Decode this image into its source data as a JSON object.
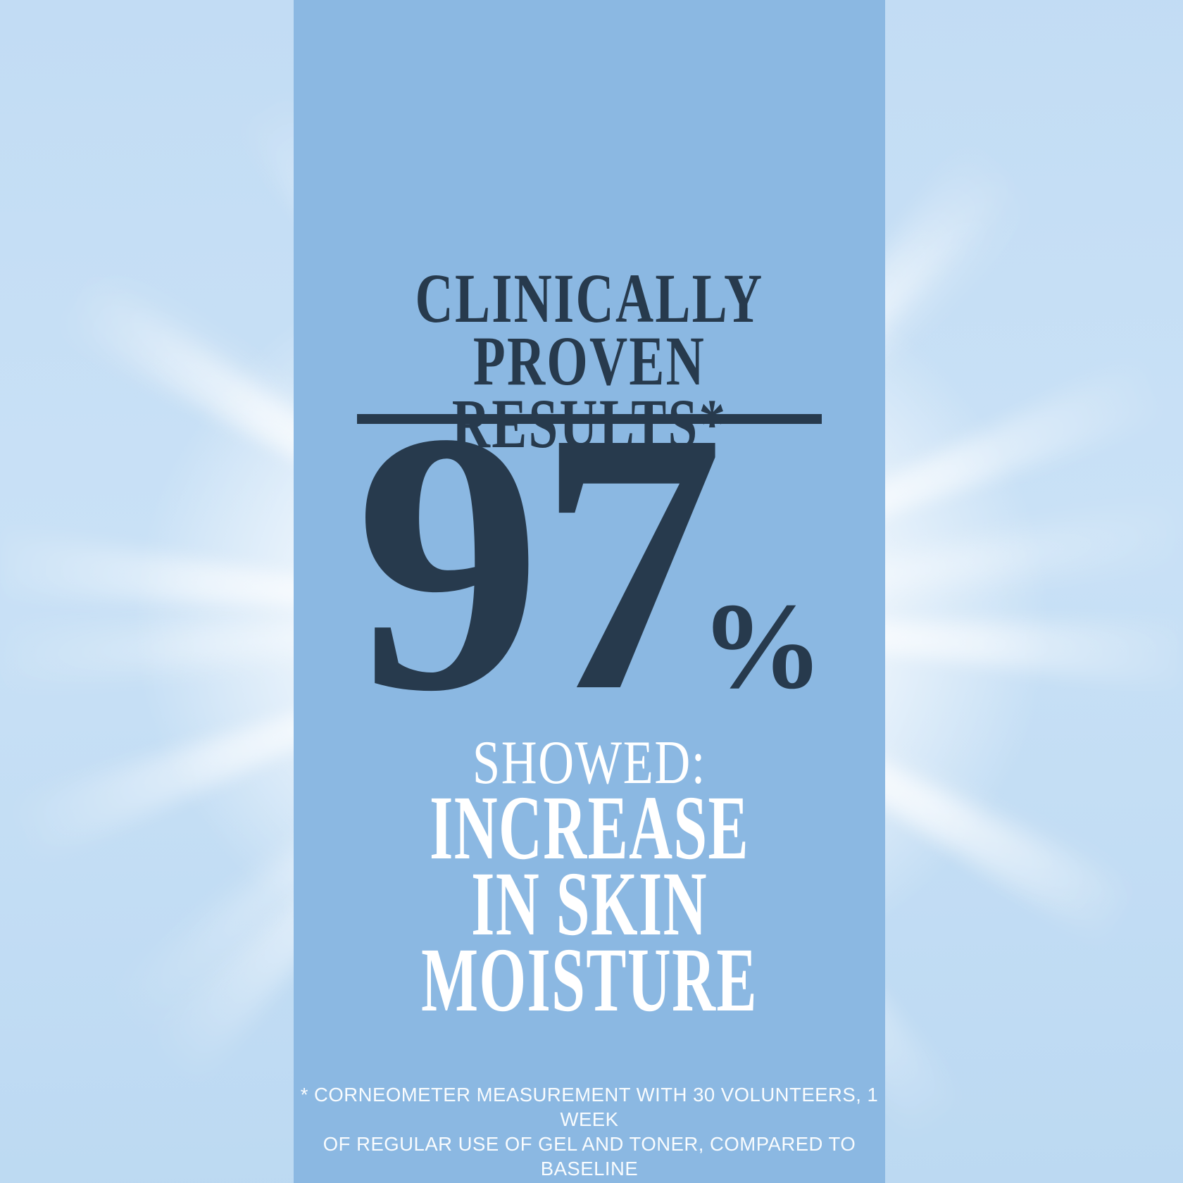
{
  "colors": {
    "panel_blue": "#8bb8e2",
    "accent_navy": "#273a4d",
    "sky_light_blue": "#c5def5",
    "burst_white": "#ffffff",
    "text_white": "#ffffff"
  },
  "panel": {
    "title_line1": "CLINICALLY",
    "title_line2": "PROVEN RESULTS*",
    "stat_value": "97",
    "stat_unit": "%",
    "subtitle": "SHOWED:",
    "claim_line1": "INCREASE",
    "claim_line2": "IN SKIN",
    "claim_line3": "MOISTURE",
    "footnote_line1": "* CORNEOMETER MEASUREMENT WITH 30 VOLUNTEERS, 1 WEEK",
    "footnote_line2": "OF REGULAR USE OF GEL AND TONER, COMPARED TO BASELINE"
  }
}
